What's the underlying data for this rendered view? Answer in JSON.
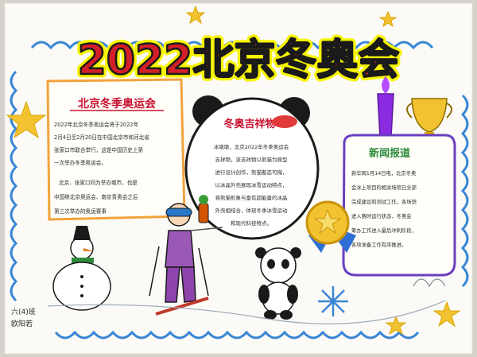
{
  "poster": {
    "title": "2022北京冬奥会",
    "left_panel": {
      "heading": "北京冬季奥运会",
      "para1": [
        "2022年北京冬季奥运会将于2022年",
        "2月4日至2月20日在中国北京市和河北省",
        "张家口市联合举行，这是中国历史上第",
        "一次举办冬季奥运会。"
      ],
      "para2": [
        "北京、张家口同为举办城市，也是",
        "中国继北京奥运会、南京青奥会之后",
        "第三次举办的奥运赛事"
      ]
    },
    "middle_panel": {
      "heading": "冬奥吉祥物",
      "body": [
        "冰墩墩，北京2022年冬季奥运会",
        "吉祥物，该吉祥物以熊猫为原型",
        "进行设计创作，熊猫憨态可掬，",
        "以冰晶外壳展现冰雪运动特点，",
        "将熊猫形象与富有超能量的冰晶",
        "外壳相结合，体现冬季冰雪运动",
        "和现代科技特点。"
      ]
    },
    "right_panel": {
      "heading": "新闻报道",
      "body": [
        "新华网1月14日电，北京冬奥",
        "会冰上项目的相关场馆已全部",
        "完成建设和测试工作，各场馆",
        "进入赛时运行状态，冬奥会",
        "筹办工作进入最后冲刺阶段，",
        "各项准备工作有序推进。"
      ]
    },
    "signature": [
      "六(4)班",
      "欧阳若"
    ],
    "colors": {
      "title_red": "#d21f2a",
      "title_outline": "#1a1a1a",
      "title_glow": "#f7f400",
      "border_blue": "#3a86d6",
      "star_yellow": "#f2c230",
      "heading_red": "#c8102e",
      "right_heading_green": "#2e8b3a",
      "paper": "#fbfaf6"
    },
    "icons": [
      "star-icon",
      "snowman",
      "skier",
      "panda-mascot-head",
      "panda-cub",
      "gold-medal",
      "trophy",
      "snowflake-icon",
      "torch"
    ]
  }
}
